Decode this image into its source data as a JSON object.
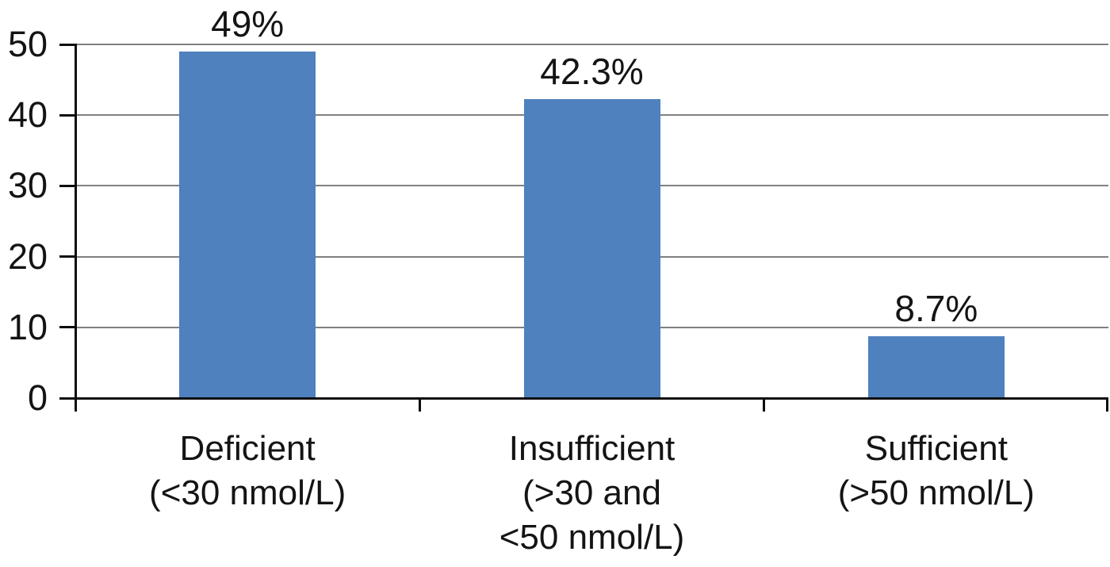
{
  "chart_data": {
    "type": "bar",
    "title": "",
    "xlabel": "",
    "ylabel": "",
    "categories": [
      "Deficient\n(<30 nmol/L)",
      "Insufficient\n(>30 and\n<50 nmol/L)",
      "Sufficient\n(>50 nmol/L)"
    ],
    "values": [
      49,
      42.3,
      8.7
    ],
    "data_labels": [
      "49%",
      "42.3%",
      "8.7%"
    ],
    "ylim": [
      0,
      50
    ],
    "yticks": [
      0,
      10,
      20,
      30,
      40,
      50
    ],
    "ytick_labels": [
      "0",
      "10",
      "20",
      "30",
      "40",
      "50"
    ],
    "grid": "horizontal",
    "legend": "none",
    "colors": {
      "bar": "#4e81bd",
      "gridline": "#808080",
      "axis": "#0d0d0d",
      "text": "#141414"
    }
  }
}
